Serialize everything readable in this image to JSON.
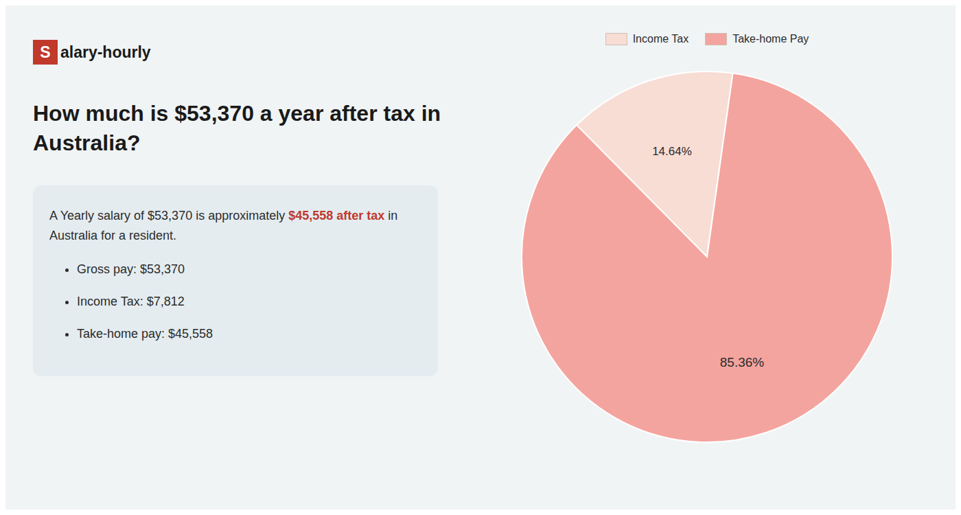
{
  "chart_data": {
    "type": "pie",
    "title": "How much is $53,370 a year after tax in\nAustralia?",
    "categories": [
      "Income Tax",
      "Take-home Pay"
    ],
    "values": [
      14.64,
      85.36
    ],
    "value_labels": [
      "14.64%",
      "85.36%"
    ],
    "colors": [
      "#f8ddd5",
      "#f4a49e"
    ],
    "data_labels": true,
    "legend": "top",
    "annotations": [
      "S",
      "alary-hourly",
      "A Yearly salary of $53,370 is approximately",
      "$45,558 after tax",
      "in",
      "Australia for a resident.",
      "Gross pay: $53,370",
      "Income Tax: $7,812",
      "Take-home pay: $45,558"
    ]
  }
}
